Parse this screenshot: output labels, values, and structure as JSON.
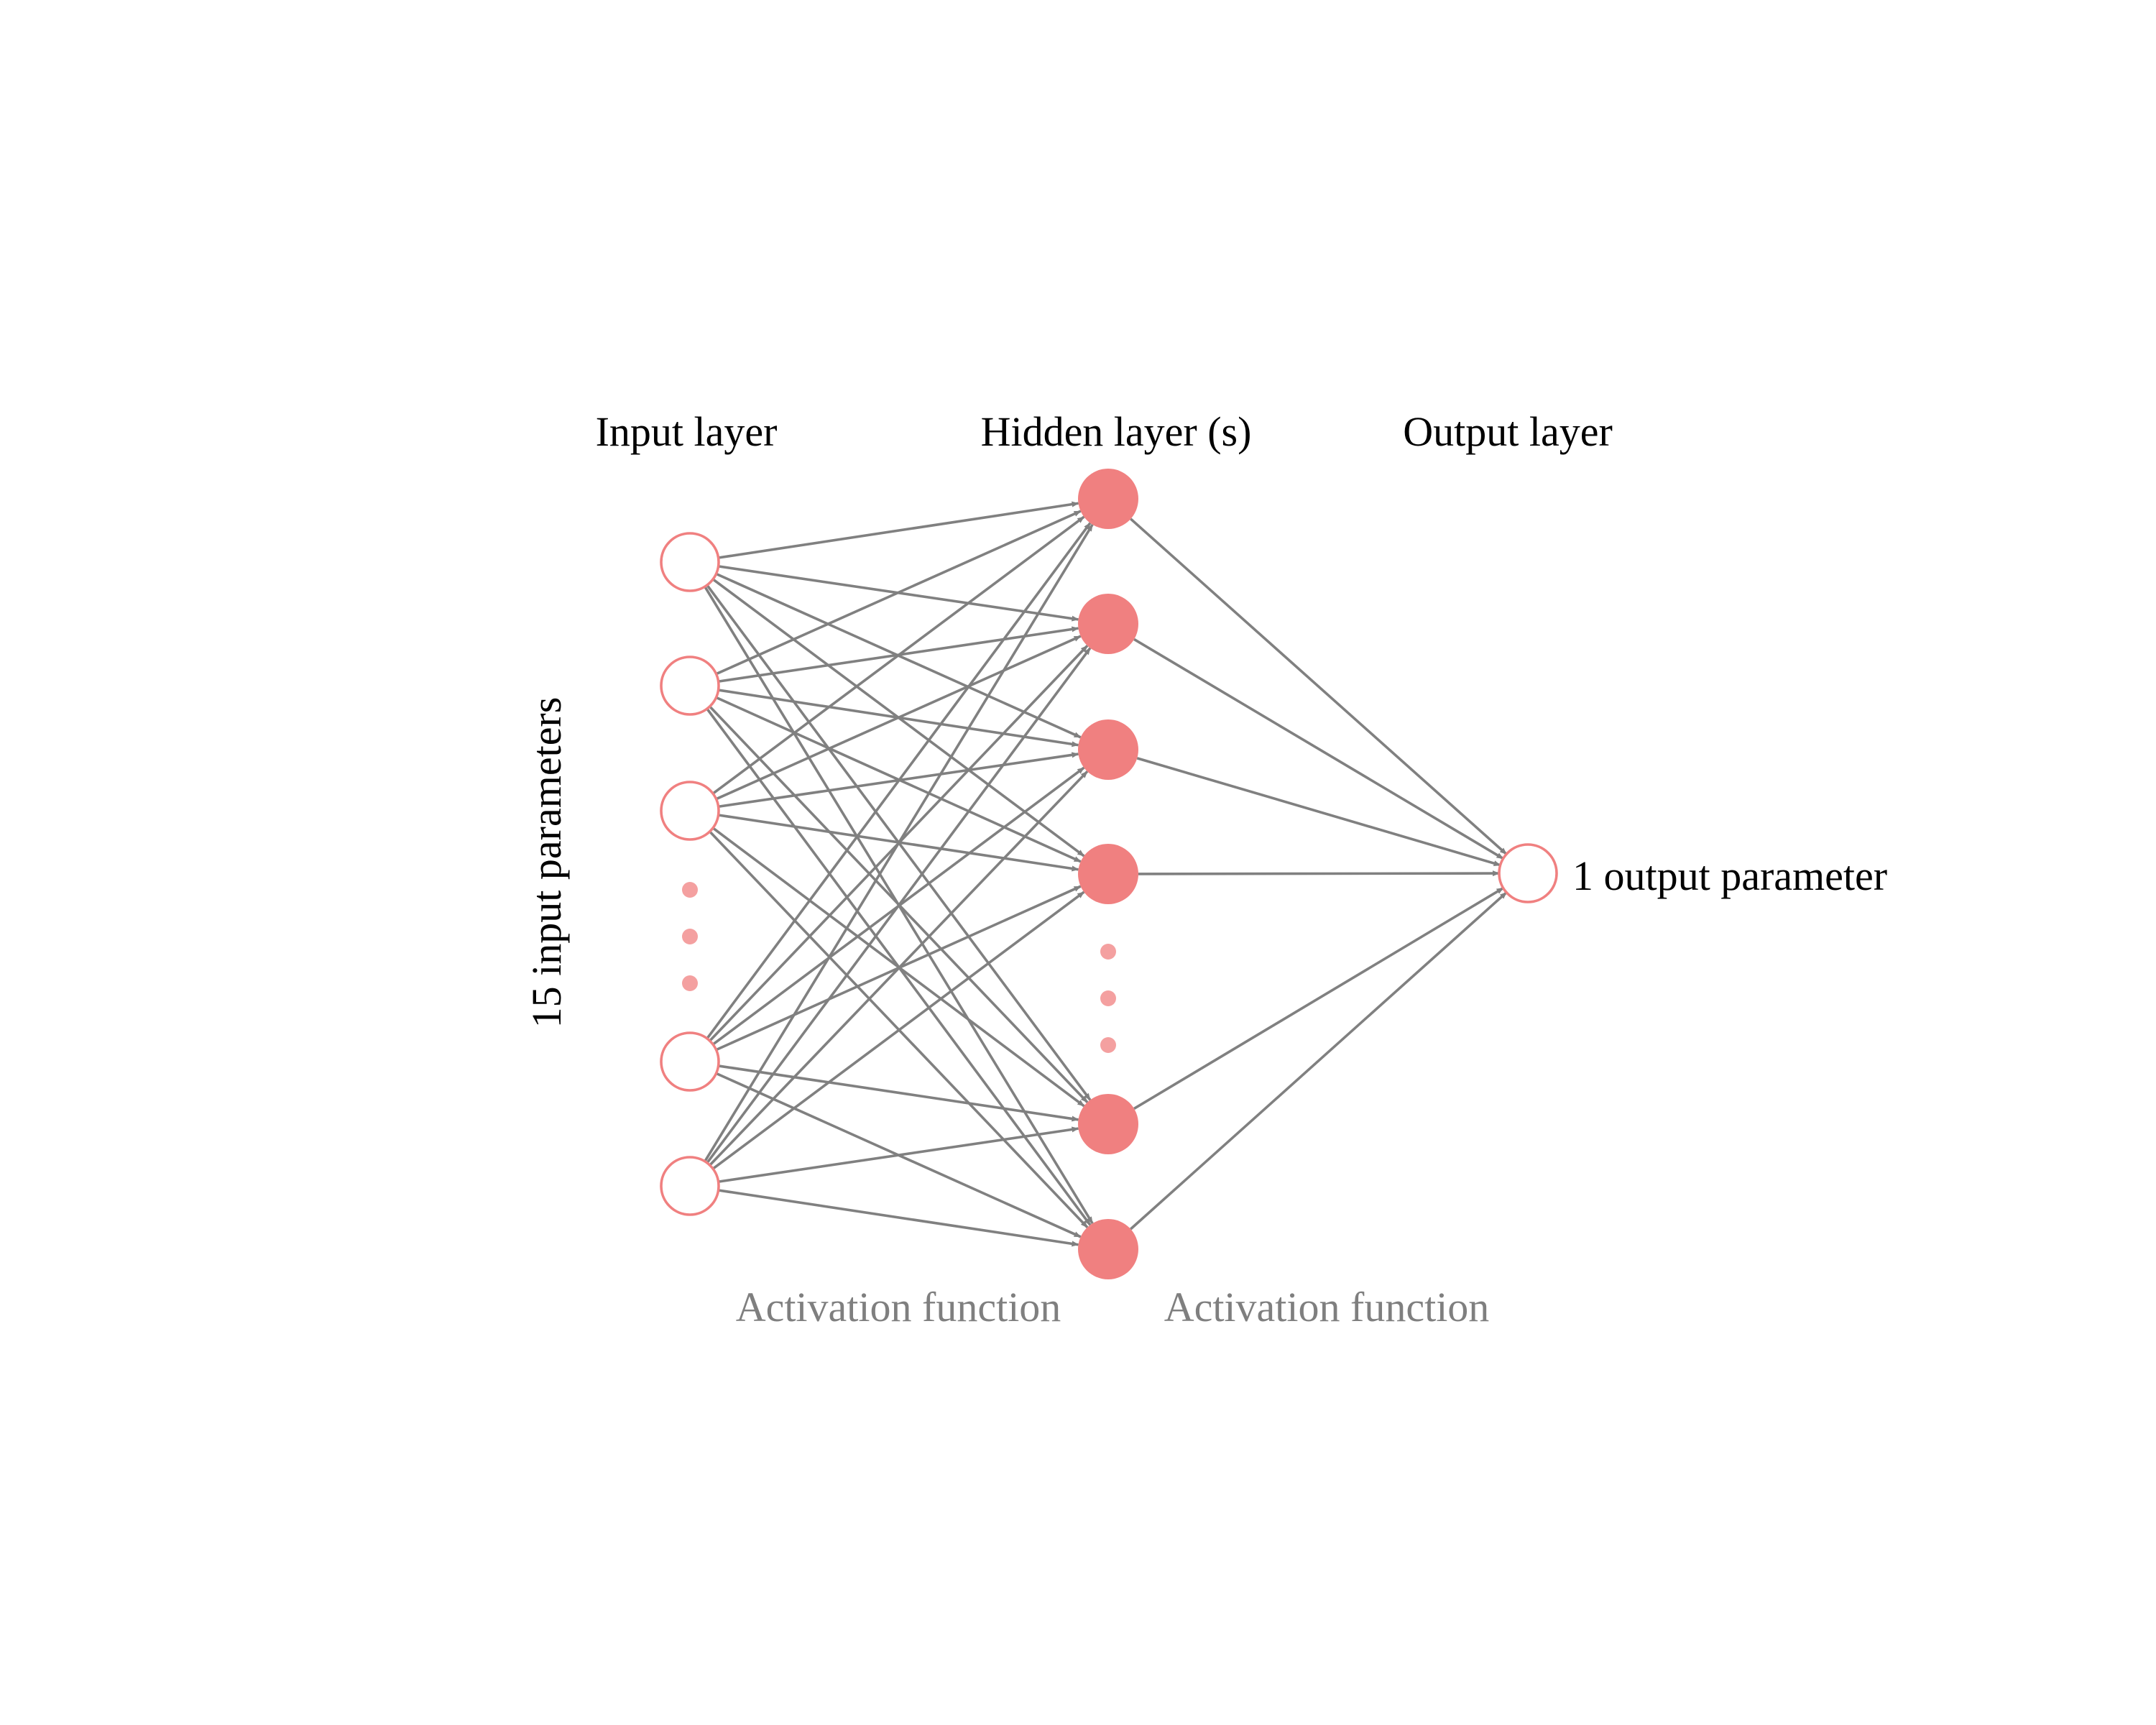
{
  "titles": {
    "input_layer": "Input layer",
    "hidden_layer": "Hidden layer (s)",
    "output_layer": "Output layer"
  },
  "labels": {
    "input_count": "15 input parameters",
    "output_count": "1 output parameter",
    "activation_1": "Activation function",
    "activation_2": "Activation function"
  },
  "colors": {
    "node": "#f08080",
    "edge": "#808080",
    "activation_text": "#7f7f7f"
  },
  "network": {
    "input_nodes_shown": 5,
    "hidden_nodes_shown": 6,
    "output_nodes": 1,
    "input_ellipsis_dots": 3,
    "hidden_ellipsis_dots": 3,
    "fully_connected": true
  }
}
